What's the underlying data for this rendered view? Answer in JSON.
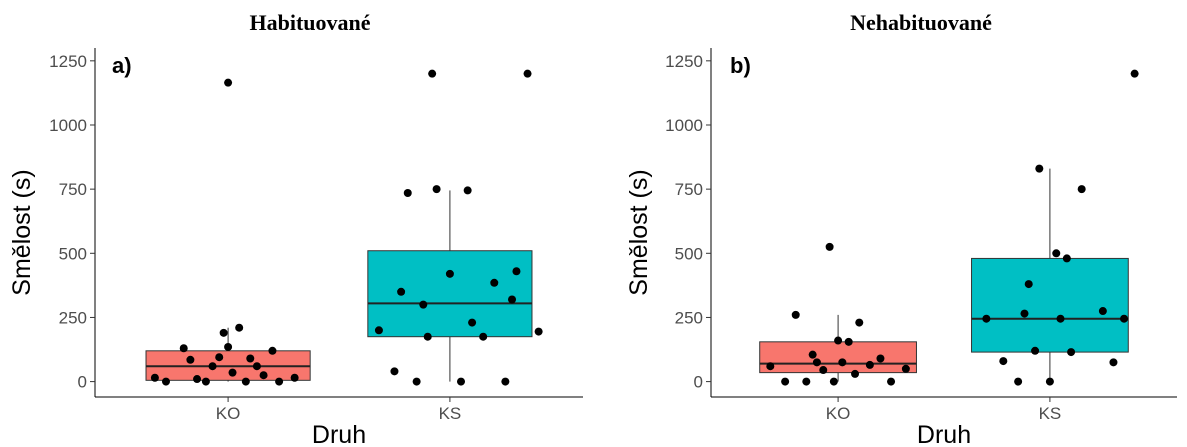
{
  "chart_data": [
    {
      "type": "box",
      "panel_label": "a)",
      "title": "Habituované",
      "xlabel": "Druh",
      "ylabel": "Smělost (s)",
      "ylim": [
        -60,
        1300
      ],
      "yticks": [
        0,
        250,
        500,
        750,
        1000,
        1250
      ],
      "categories": [
        "KO",
        "KS"
      ],
      "colors": [
        "#F8766D",
        "#00BFC4"
      ],
      "boxes": [
        {
          "category": "KO",
          "q1": 5,
          "median": 60,
          "q3": 120,
          "whisker_low": 0,
          "whisker_high": 210
        },
        {
          "category": "KS",
          "q1": 175,
          "median": 305,
          "q3": 510,
          "whisker_low": 0,
          "whisker_high": 745
        }
      ],
      "points": [
        [
          [
            0.67,
            15
          ],
          [
            0.72,
            0
          ],
          [
            0.8,
            130
          ],
          [
            0.83,
            85
          ],
          [
            0.86,
            10
          ],
          [
            0.9,
            0
          ],
          [
            0.93,
            60
          ],
          [
            0.96,
            95
          ],
          [
            0.98,
            190
          ],
          [
            1.0,
            135
          ],
          [
            1.02,
            35
          ],
          [
            1.05,
            210
          ],
          [
            1.08,
            0
          ],
          [
            1.1,
            90
          ],
          [
            1.13,
            60
          ],
          [
            1.16,
            25
          ],
          [
            1.2,
            120
          ],
          [
            1.23,
            0
          ],
          [
            1.3,
            15
          ],
          [
            1.0,
            1165
          ]
        ],
        [
          [
            1.68,
            200
          ],
          [
            1.75,
            40
          ],
          [
            1.78,
            350
          ],
          [
            1.81,
            735
          ],
          [
            1.85,
            0
          ],
          [
            1.88,
            300
          ],
          [
            1.9,
            175
          ],
          [
            1.92,
            1200
          ],
          [
            1.94,
            750
          ],
          [
            2.0,
            420
          ],
          [
            2.05,
            0
          ],
          [
            2.08,
            745
          ],
          [
            2.1,
            230
          ],
          [
            2.15,
            175
          ],
          [
            2.2,
            385
          ],
          [
            2.25,
            0
          ],
          [
            2.28,
            320
          ],
          [
            2.3,
            430
          ],
          [
            2.35,
            1200
          ],
          [
            2.4,
            195
          ]
        ]
      ]
    },
    {
      "type": "box",
      "panel_label": "b)",
      "title": "Nehabituované",
      "xlabel": "Druh",
      "ylabel": "Smělost (s)",
      "ylim": [
        -60,
        1300
      ],
      "yticks": [
        0,
        250,
        500,
        750,
        1000,
        1250
      ],
      "categories": [
        "KO",
        "KS"
      ],
      "colors": [
        "#F8766D",
        "#00BFC4"
      ],
      "boxes": [
        {
          "category": "KO",
          "q1": 35,
          "median": 70,
          "q3": 155,
          "whisker_low": 0,
          "whisker_high": 260
        },
        {
          "category": "KS",
          "q1": 115,
          "median": 245,
          "q3": 480,
          "whisker_low": 0,
          "whisker_high": 830
        }
      ],
      "points": [
        [
          [
            0.68,
            60
          ],
          [
            0.75,
            0
          ],
          [
            0.8,
            260
          ],
          [
            0.85,
            0
          ],
          [
            0.88,
            105
          ],
          [
            0.9,
            75
          ],
          [
            0.93,
            45
          ],
          [
            0.96,
            525
          ],
          [
            0.98,
            0
          ],
          [
            1.0,
            160
          ],
          [
            1.02,
            75
          ],
          [
            1.05,
            155
          ],
          [
            1.08,
            30
          ],
          [
            1.1,
            230
          ],
          [
            1.15,
            65
          ],
          [
            1.2,
            90
          ],
          [
            1.25,
            0
          ],
          [
            1.32,
            50
          ]
        ],
        [
          [
            1.7,
            245
          ],
          [
            1.78,
            80
          ],
          [
            1.85,
            0
          ],
          [
            1.88,
            265
          ],
          [
            1.9,
            380
          ],
          [
            1.93,
            120
          ],
          [
            1.95,
            830
          ],
          [
            2.0,
            0
          ],
          [
            2.03,
            500
          ],
          [
            2.05,
            245
          ],
          [
            2.08,
            480
          ],
          [
            2.1,
            115
          ],
          [
            2.15,
            750
          ],
          [
            2.25,
            275
          ],
          [
            2.3,
            75
          ],
          [
            2.35,
            245
          ],
          [
            2.4,
            1200
          ]
        ]
      ]
    }
  ]
}
